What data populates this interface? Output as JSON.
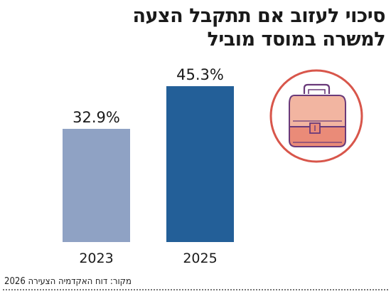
{
  "title_lines": [
    "סיכוי לעזוב אם תתקבל הצעה",
    "למשרה במוסד מוביל"
  ],
  "source": "מקור: דוח האקדמיה הצעירה 2026",
  "icon": "briefcase-icon",
  "colors": {
    "bar_2023": "#8fa2c4",
    "bar_2025": "#235f98",
    "icon_circle": "#d8564b",
    "icon_top": "#f2b5a1",
    "icon_bottom": "#ea8b78",
    "icon_stroke": "#6a3a7a"
  },
  "chart_data": {
    "type": "bar",
    "categories": [
      "2023",
      "2025"
    ],
    "values": [
      32.9,
      45.3
    ],
    "value_labels": [
      "32.9%",
      "45.3%"
    ],
    "ylim": [
      0,
      60
    ],
    "xlabel": "",
    "ylabel": "",
    "grid": false
  }
}
